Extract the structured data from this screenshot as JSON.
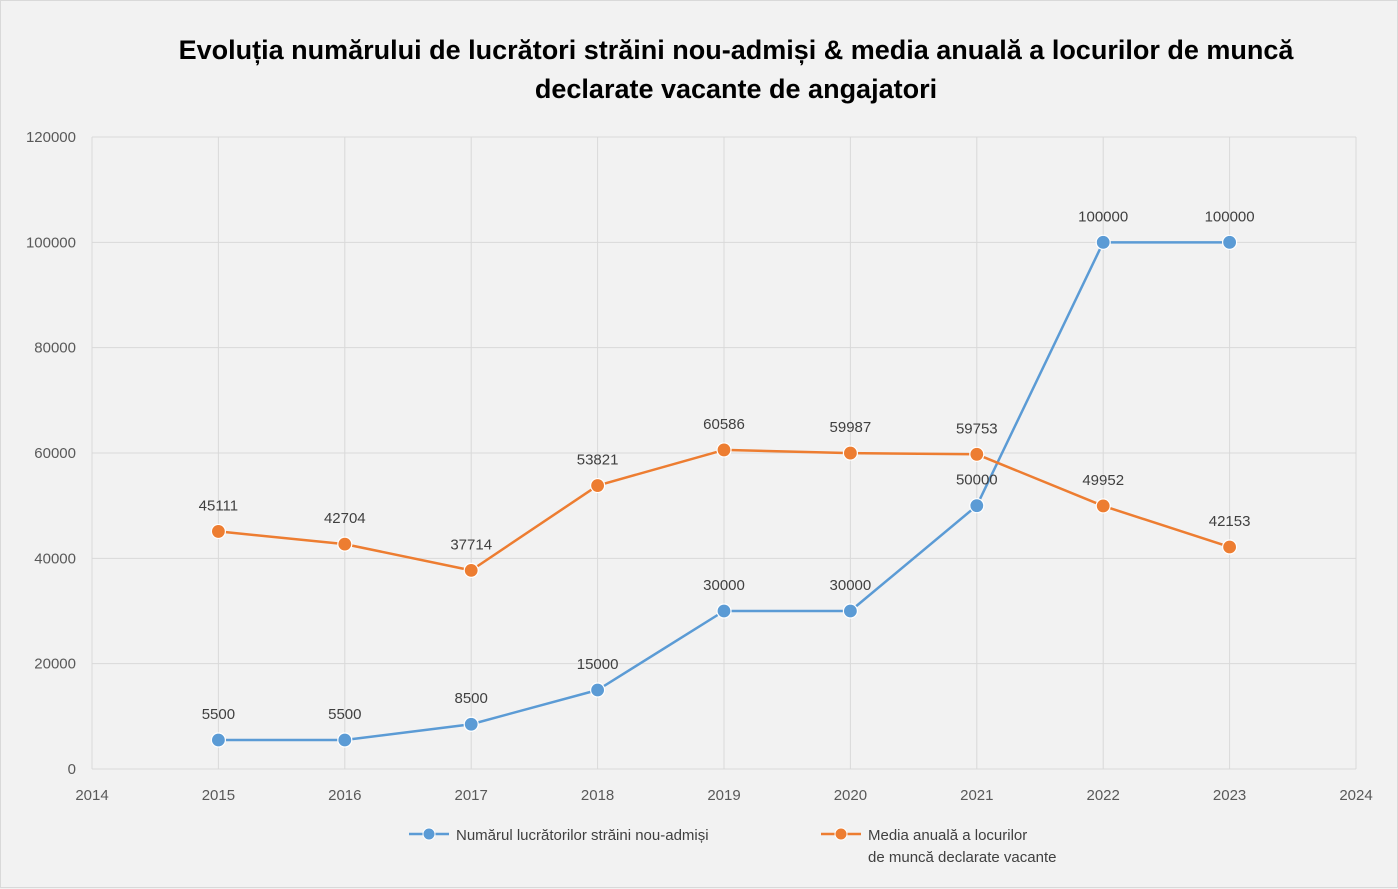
{
  "chart_data": {
    "type": "line",
    "title": "Evoluția numărului de lucrători străini nou-admiși & media anuală a locurilor de muncă declarate vacante de angajatori",
    "xlabel": "",
    "ylabel": "",
    "xlim": [
      2014,
      2024
    ],
    "ylim": [
      0,
      120000
    ],
    "x_ticks": [
      2014,
      2015,
      2016,
      2017,
      2018,
      2019,
      2020,
      2021,
      2022,
      2023,
      2024
    ],
    "y_ticks": [
      0,
      20000,
      40000,
      60000,
      80000,
      100000,
      120000
    ],
    "grid": true,
    "legend_position": "bottom",
    "x": [
      2015,
      2016,
      2017,
      2018,
      2019,
      2020,
      2021,
      2022,
      2023
    ],
    "series": [
      {
        "name": "Numărul lucrătorilor străini nou-admiși",
        "color": "#5b9bd5",
        "values": [
          5500,
          5500,
          8500,
          15000,
          30000,
          30000,
          50000,
          100000,
          100000
        ]
      },
      {
        "name": "Media anuală a locurilor de muncă declarate vacante",
        "legend_lines": [
          "Media anuală a locurilor",
          "de muncă declarate vacante"
        ],
        "color": "#ed7d31",
        "values": [
          45111,
          42704,
          37714,
          53821,
          60586,
          59987,
          59753,
          49952,
          42153
        ]
      }
    ]
  }
}
